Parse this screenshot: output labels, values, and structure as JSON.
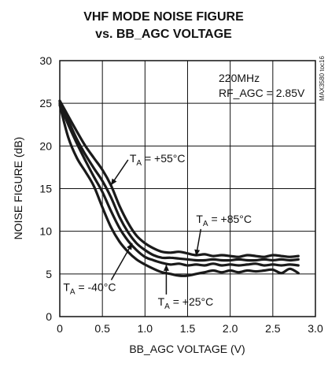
{
  "chart_data": {
    "type": "line",
    "title_lines": [
      "VHF MODE NOISE FIGURE",
      "vs. BB_AGC VOLTAGE"
    ],
    "xlabel": "BB_AGC VOLTAGE (V)",
    "ylabel": "NOISE FIGURE (dB)",
    "xlim": [
      0,
      3.0
    ],
    "ylim": [
      0,
      30
    ],
    "xticks": [
      "0",
      "0.5",
      "1.0",
      "1.5",
      "2.0",
      "2.5",
      "3.0"
    ],
    "yticks": [
      "0",
      "5",
      "10",
      "15",
      "20",
      "25",
      "30"
    ],
    "grid": true,
    "conditions": [
      "220MHz",
      "RF_AGC = 2.85V"
    ],
    "figure_code": "MAX3580 toc16",
    "series": [
      {
        "name": "T_A = +55°C",
        "x": [
          0,
          0.1,
          0.2,
          0.3,
          0.4,
          0.5,
          0.6,
          0.7,
          0.8,
          0.9,
          1.0,
          1.1,
          1.2,
          1.3,
          1.4,
          1.5,
          1.6,
          1.7,
          1.8,
          1.9,
          2.0,
          2.1,
          2.2,
          2.3,
          2.4,
          2.5,
          2.6,
          2.7,
          2.8
        ],
        "y": [
          25.2,
          23.0,
          20.8,
          19.0,
          17.4,
          15.9,
          14.0,
          11.7,
          9.9,
          8.6,
          7.8,
          7.2,
          6.9,
          6.9,
          6.8,
          6.7,
          6.6,
          6.6,
          6.7,
          6.6,
          6.6,
          6.7,
          6.6,
          6.6,
          6.7,
          6.6,
          6.7,
          6.6,
          6.7
        ]
      },
      {
        "name": "T_A = +85°C",
        "x": [
          0,
          0.1,
          0.2,
          0.3,
          0.4,
          0.5,
          0.6,
          0.7,
          0.8,
          0.9,
          1.0,
          1.1,
          1.2,
          1.3,
          1.4,
          1.5,
          1.6,
          1.7,
          1.8,
          1.9,
          2.0,
          2.1,
          2.2,
          2.3,
          2.4,
          2.5,
          2.6,
          2.7,
          2.8
        ],
        "y": [
          25.3,
          23.5,
          21.7,
          20.0,
          18.6,
          17.2,
          15.4,
          13.0,
          11.0,
          9.5,
          8.6,
          8.0,
          7.6,
          7.5,
          7.6,
          7.4,
          7.2,
          7.3,
          7.1,
          7.2,
          7.1,
          7.0,
          7.2,
          7.1,
          7.0,
          7.2,
          7.1,
          7.0,
          7.1
        ]
      },
      {
        "name": "T_A = +25°C",
        "x": [
          0,
          0.1,
          0.2,
          0.3,
          0.4,
          0.5,
          0.6,
          0.7,
          0.8,
          0.9,
          1.0,
          1.1,
          1.2,
          1.3,
          1.4,
          1.5,
          1.6,
          1.7,
          1.8,
          1.9,
          2.0,
          2.1,
          2.2,
          2.3,
          2.4,
          2.5,
          2.6,
          2.7,
          2.8
        ],
        "y": [
          25.0,
          22.5,
          20.3,
          18.3,
          16.4,
          14.6,
          12.4,
          10.4,
          8.9,
          7.8,
          7.0,
          6.6,
          6.3,
          6.1,
          6.2,
          6.0,
          6.1,
          6.0,
          6.2,
          6.0,
          6.1,
          6.0,
          6.1,
          6.2,
          6.0,
          6.1,
          6.0,
          6.1,
          6.0
        ]
      },
      {
        "name": "T_A = -40°C",
        "x": [
          0,
          0.1,
          0.2,
          0.3,
          0.4,
          0.5,
          0.6,
          0.7,
          0.8,
          0.9,
          1.0,
          1.1,
          1.2,
          1.3,
          1.4,
          1.5,
          1.6,
          1.7,
          1.8,
          1.9,
          2.0,
          2.1,
          2.2,
          2.3,
          2.4,
          2.5,
          2.6,
          2.7,
          2.8
        ],
        "y": [
          24.8,
          21.0,
          18.6,
          17.0,
          15.3,
          12.8,
          10.5,
          8.8,
          7.6,
          6.7,
          6.1,
          5.6,
          5.2,
          5.0,
          4.8,
          4.8,
          5.0,
          5.2,
          5.4,
          5.2,
          5.4,
          5.2,
          5.4,
          5.3,
          5.4,
          5.5,
          5.1,
          5.6,
          5.1
        ]
      }
    ],
    "annotations": [
      {
        "sub": "A",
        "value": " = +55°C",
        "label_x": 0.82,
        "label_y": 18.1,
        "arrow_to": [
          0.6,
          15.4
        ]
      },
      {
        "sub": "A",
        "value": " = +85°C",
        "label_x": 1.6,
        "label_y": 11.0,
        "arrow_to": [
          1.6,
          7.1
        ]
      },
      {
        "sub": "A",
        "value": " = -40°C",
        "label_x": 0.04,
        "label_y": 3.0,
        "arrow_to": [
          0.85,
          8.6
        ]
      },
      {
        "sub": "A",
        "value": " = +25°C",
        "label_x": 1.15,
        "label_y": 1.3,
        "arrow_to": [
          1.25,
          6.1
        ]
      }
    ]
  }
}
